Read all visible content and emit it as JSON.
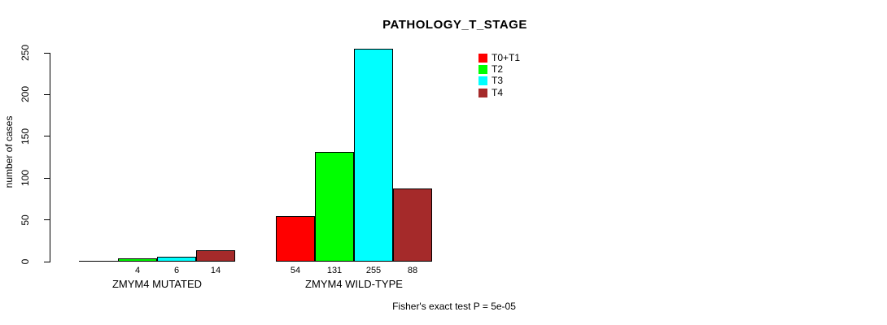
{
  "chart_data": {
    "type": "bar",
    "title": "PATHOLOGY_T_STAGE",
    "ylabel": "number of cases",
    "ylim": [
      0,
      250
    ],
    "yticks": [
      0,
      50,
      100,
      150,
      200,
      250
    ],
    "grid": false,
    "legend_position": "top-right-inside",
    "legend": [
      {
        "label": "T0+T1",
        "color": "#FF0000"
      },
      {
        "label": "T2",
        "color": "#00FF00"
      },
      {
        "label": "T3",
        "color": "#00FFFF"
      },
      {
        "label": "T4",
        "color": "#A52A2A"
      }
    ],
    "groups": [
      {
        "label": "ZMYM4 MUTATED",
        "bars": [
          {
            "series": "T0+T1",
            "value": 0,
            "label": ""
          },
          {
            "series": "T2",
            "value": 4,
            "label": "4"
          },
          {
            "series": "T3",
            "value": 6,
            "label": "6"
          },
          {
            "series": "T4",
            "value": 14,
            "label": "14"
          }
        ]
      },
      {
        "label": "ZMYM4 WILD-TYPE",
        "bars": [
          {
            "series": "T0+T1",
            "value": 54,
            "label": "54"
          },
          {
            "series": "T2",
            "value": 131,
            "label": "131"
          },
          {
            "series": "T3",
            "value": 255,
            "label": "255"
          },
          {
            "series": "T4",
            "value": 88,
            "label": "88"
          }
        ]
      }
    ],
    "annotation": "Fisher's exact test P = 5e-05"
  }
}
